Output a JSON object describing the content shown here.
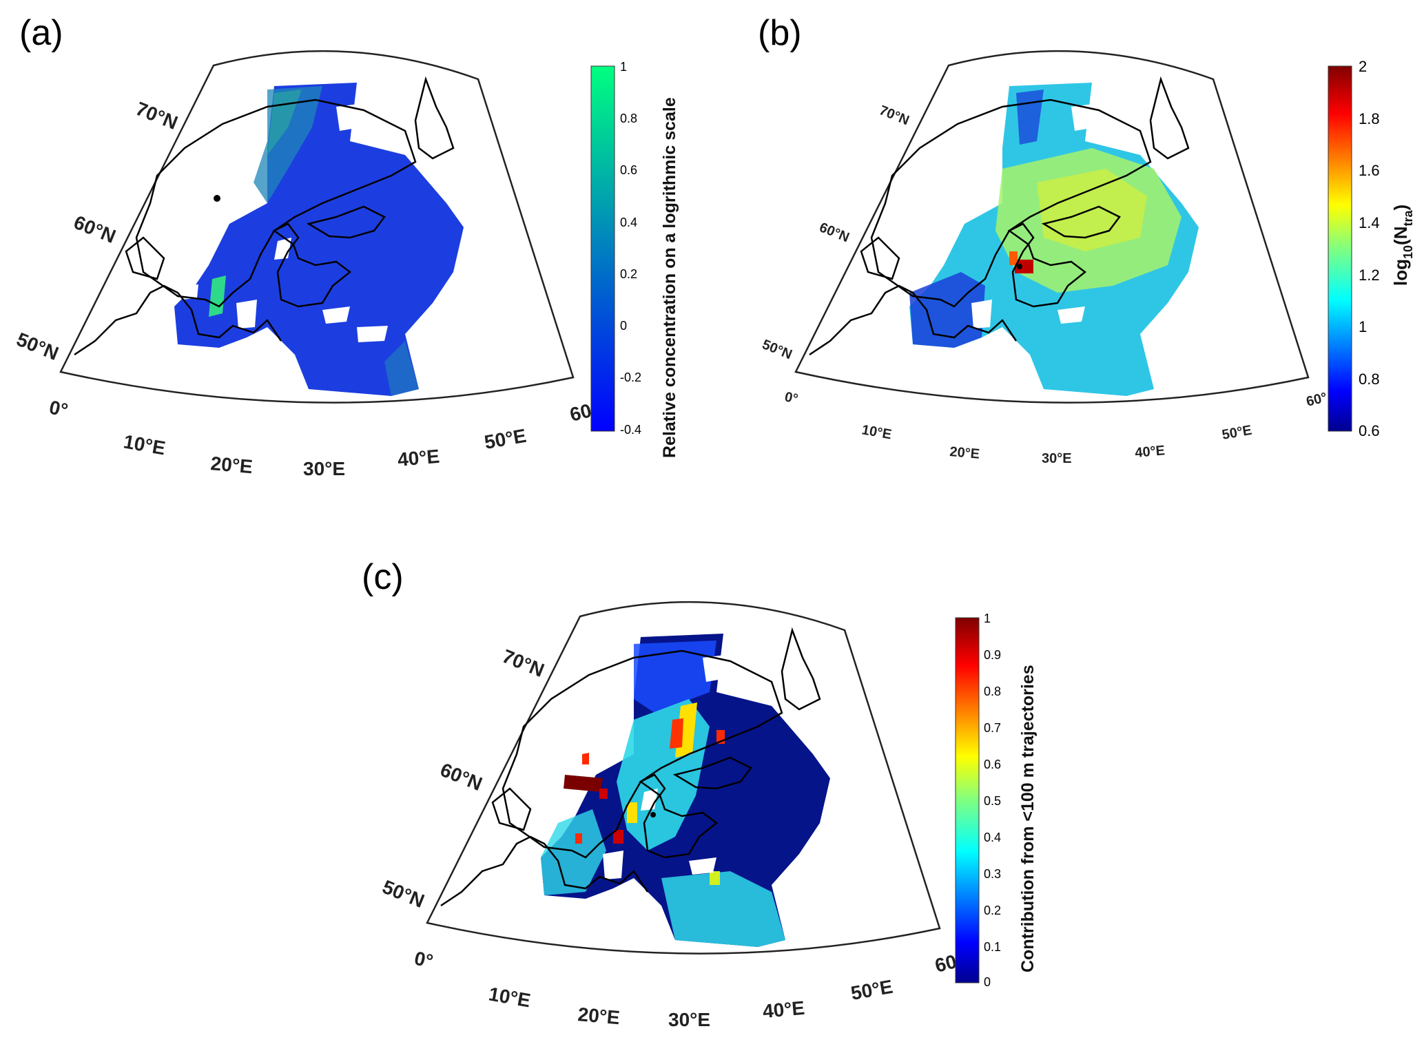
{
  "panels": [
    {
      "id": "a",
      "letter": "(a)",
      "colorbar": {
        "label": "Relative concentration on a logrithmic scale",
        "colormap": "winter",
        "ticks": [
          "1",
          "0.8",
          "0.6",
          "0.4",
          "0.2",
          "0",
          "-0.2",
          "-0.4"
        ]
      },
      "lat_labels": [
        "70°N",
        "60°N",
        "50°N"
      ],
      "lon_labels": [
        "0°",
        "10°E",
        "20°E",
        "30°E",
        "40°E",
        "50°E",
        "60"
      ],
      "station_marker": true
    },
    {
      "id": "b",
      "letter": "(b)",
      "colorbar": {
        "label_main": "log",
        "label_sub1": "10",
        "label_mid": "(N",
        "label_sub2": "tra",
        "label_end": ")",
        "colormap": "jet",
        "ticks": [
          "2",
          "1.8",
          "1.6",
          "1.4",
          "1.2",
          "1",
          "0.8",
          "0.6"
        ]
      },
      "lat_labels": [
        "70°N",
        "60°N",
        "50°N"
      ],
      "lon_labels": [
        "0°",
        "10°E",
        "20°E",
        "30°E",
        "40°E",
        "50°E",
        "60°"
      ],
      "station_marker": true
    },
    {
      "id": "c",
      "letter": "(c)",
      "colorbar": {
        "label": "Contribution from <100 m trajectories",
        "colormap": "jet",
        "ticks": [
          "1",
          "0.9",
          "0.8",
          "0.7",
          "0.6",
          "0.5",
          "0.4",
          "0.3",
          "0.2",
          "0.1",
          "0"
        ]
      },
      "lat_labels": [
        "70°N",
        "60°N",
        "50°N"
      ],
      "lon_labels": [
        "0°",
        "10°E",
        "20°E",
        "30°E",
        "40°E",
        "50°E",
        "60"
      ],
      "station_marker": true
    }
  ]
}
